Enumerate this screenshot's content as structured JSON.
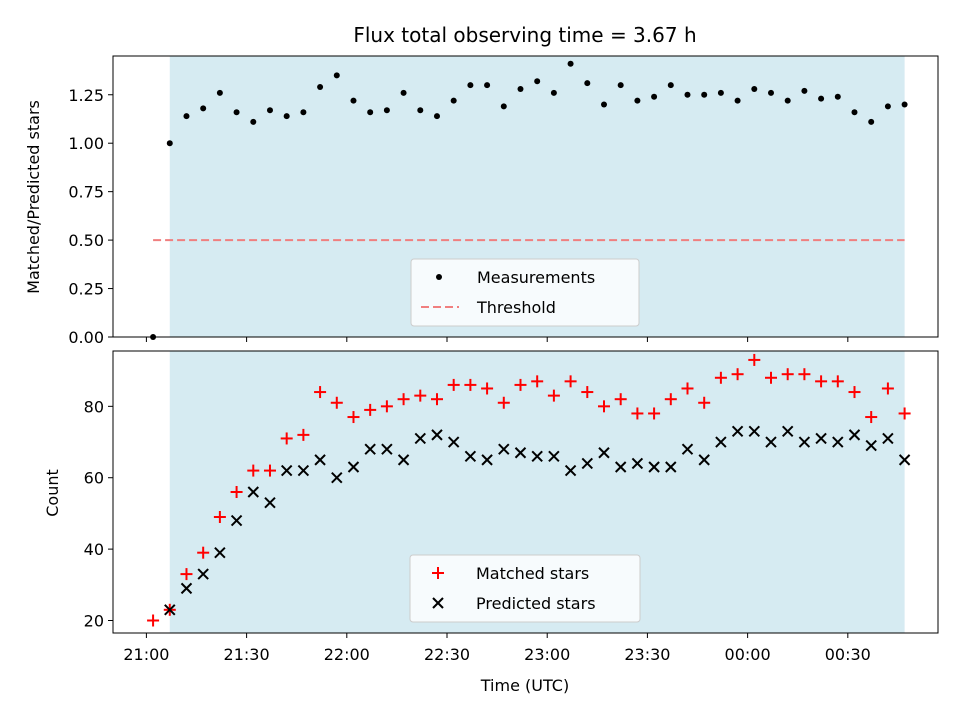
{
  "chart_data": [
    {
      "type": "scatter",
      "title": "Flux total observing time = 3.67 h",
      "xlabel": "",
      "ylabel": "Matched/Predicted stars",
      "ylim": [
        0,
        1.45
      ],
      "yticks": [
        "0.00",
        "0.25",
        "0.50",
        "0.75",
        "1.00",
        "1.25"
      ],
      "shaded_range_minutes": [
        7,
        227
      ],
      "legend_position": "lower-center",
      "threshold": {
        "name": "Threshold",
        "value": 0.5,
        "x_range_minutes": [
          2,
          227
        ],
        "color": "#f07f7f"
      },
      "series": [
        {
          "name": "Measurements",
          "color": "#000000",
          "marker": "dot",
          "x": [
            2,
            7,
            12,
            17,
            22,
            27,
            32,
            37,
            42,
            47,
            52,
            57,
            62,
            67,
            72,
            77,
            82,
            87,
            92,
            97,
            102,
            107,
            112,
            117,
            122,
            127,
            132,
            137,
            142,
            147,
            152,
            157,
            162,
            167,
            172,
            177,
            182,
            187,
            192,
            197,
            202,
            207,
            212,
            217,
            222,
            227
          ],
          "y": [
            0.0,
            1.0,
            1.14,
            1.18,
            1.26,
            1.16,
            1.11,
            1.17,
            1.14,
            1.16,
            1.29,
            1.35,
            1.22,
            1.16,
            1.17,
            1.26,
            1.17,
            1.14,
            1.22,
            1.3,
            1.3,
            1.19,
            1.28,
            1.32,
            1.26,
            1.41,
            1.31,
            1.2,
            1.3,
            1.22,
            1.24,
            1.3,
            1.25,
            1.25,
            1.26,
            1.22,
            1.28,
            1.26,
            1.22,
            1.27,
            1.23,
            1.24,
            1.16,
            1.11,
            1.19,
            1.2
          ]
        }
      ]
    },
    {
      "type": "scatter",
      "title": "",
      "xlabel": "Time (UTC)",
      "ylabel": "Count",
      "ylim": [
        16.5,
        95.5
      ],
      "yticks": [
        "20",
        "40",
        "60",
        "80"
      ],
      "xlim_minutes": [
        -10,
        237
      ],
      "x_origin_time": "21:00",
      "xticks": [
        {
          "minutes": 0,
          "label": "21:00"
        },
        {
          "minutes": 30,
          "label": "21:30"
        },
        {
          "minutes": 60,
          "label": "22:00"
        },
        {
          "minutes": 90,
          "label": "22:30"
        },
        {
          "minutes": 120,
          "label": "23:00"
        },
        {
          "minutes": 150,
          "label": "23:30"
        },
        {
          "minutes": 180,
          "label": "00:00"
        },
        {
          "minutes": 210,
          "label": "00:30"
        }
      ],
      "shaded_range_minutes": [
        7,
        227
      ],
      "legend_position": "lower-center",
      "series": [
        {
          "name": "Matched stars",
          "color": "#ff0000",
          "marker": "plus",
          "x": [
            2,
            7,
            12,
            17,
            22,
            27,
            32,
            37,
            42,
            47,
            52,
            57,
            62,
            67,
            72,
            77,
            82,
            87,
            92,
            97,
            102,
            107,
            112,
            117,
            122,
            127,
            132,
            137,
            142,
            147,
            152,
            157,
            162,
            167,
            172,
            177,
            182,
            187,
            192,
            197,
            202,
            207,
            212,
            217,
            222,
            227
          ],
          "y": [
            20,
            23,
            33,
            39,
            49,
            56,
            62,
            62,
            71,
            72,
            84,
            81,
            77,
            79,
            80,
            82,
            83,
            82,
            86,
            86,
            85,
            81,
            86,
            87,
            83,
            87,
            84,
            80,
            82,
            78,
            78,
            82,
            85,
            81,
            88,
            89,
            93,
            88,
            89,
            89,
            87,
            87,
            84,
            77,
            85,
            78
          ]
        },
        {
          "name": "Predicted stars",
          "color": "#000000",
          "marker": "x",
          "x": [
            7,
            12,
            17,
            22,
            27,
            32,
            37,
            42,
            47,
            52,
            57,
            62,
            67,
            72,
            77,
            82,
            87,
            92,
            97,
            102,
            107,
            112,
            117,
            122,
            127,
            132,
            137,
            142,
            147,
            152,
            157,
            162,
            167,
            172,
            177,
            182,
            187,
            192,
            197,
            202,
            207,
            212,
            217,
            222,
            227
          ],
          "y": [
            23,
            29,
            33,
            39,
            48,
            56,
            53,
            62,
            62,
            65,
            60,
            63,
            68,
            68,
            65,
            71,
            72,
            70,
            66,
            65,
            68,
            67,
            66,
            66,
            62,
            64,
            67,
            63,
            64,
            63,
            63,
            68,
            65,
            70,
            73,
            73,
            70,
            73,
            70,
            71,
            70,
            72,
            69,
            71,
            65
          ]
        }
      ]
    }
  ]
}
